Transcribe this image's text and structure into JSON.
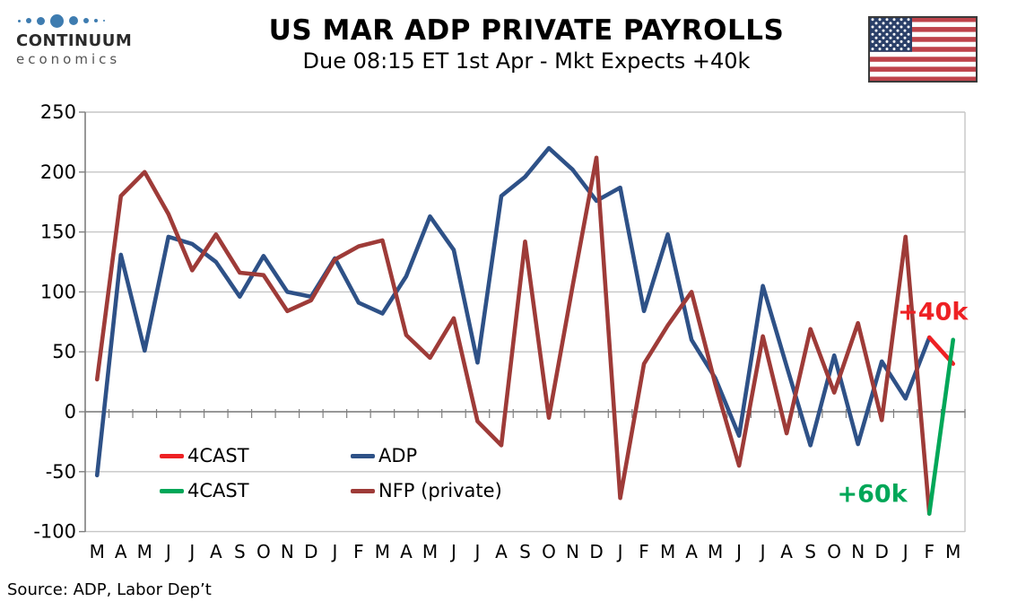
{
  "logo": {
    "name": "CONTINUUM",
    "tagline": "economics",
    "dot_color": "#3e7cb0",
    "dot_sizes": [
      3,
      6,
      9,
      15,
      10,
      6,
      4,
      2
    ]
  },
  "header": {
    "title": "US MAR ADP PRIVATE PAYROLLS",
    "subtitle": "Due 08:15 ET 1st Apr - Mkt Expects +40k"
  },
  "flag": {
    "red": "#be434b",
    "white": "#ffffff",
    "blue": "#2a3f68",
    "border": "#3a3a3a"
  },
  "source": {
    "text": "Source: ADP, Labor Dep’t"
  },
  "chart_data": {
    "type": "line",
    "title": "US MAR ADP PRIVATE PAYROLLS",
    "xlabel": "",
    "ylabel": "",
    "ylim": [
      -100,
      250
    ],
    "ytick_step": 50,
    "yticks": [
      250,
      200,
      150,
      100,
      50,
      0,
      -50,
      -100
    ],
    "grid": "horizontal",
    "legend_position": "inside-lower-left",
    "x_labels": [
      "M",
      "A",
      "M",
      "J",
      "J",
      "A",
      "S",
      "O",
      "N",
      "D",
      "J",
      "F",
      "M",
      "A",
      "M",
      "J",
      "J",
      "A",
      "S",
      "O",
      "N",
      "D",
      "J",
      "F",
      "M",
      "A",
      "M",
      "J",
      "J",
      "A",
      "S",
      "O",
      "N",
      "D",
      "J",
      "F",
      "M"
    ],
    "series": [
      {
        "name": "ADP",
        "color": "#2e5187",
        "values": [
          -53,
          131,
          51,
          146,
          140,
          125,
          96,
          130,
          100,
          96,
          128,
          91,
          82,
          113,
          163,
          135,
          41,
          180,
          196,
          220,
          202,
          176,
          187,
          84,
          148,
          60,
          28,
          -20,
          105,
          38,
          -28,
          47,
          -27,
          42,
          11,
          62,
          null
        ]
      },
      {
        "name": "NFP (private)",
        "color": "#9e3b38",
        "values": [
          27,
          180,
          200,
          165,
          118,
          148,
          116,
          114,
          84,
          93,
          127,
          138,
          143,
          64,
          45,
          78,
          -8,
          -28,
          142,
          -5,
          105,
          212,
          -72,
          40,
          72,
          100,
          23,
          -45,
          63,
          -18,
          69,
          16,
          74,
          -7,
          146,
          -85,
          null
        ]
      },
      {
        "name": "4CAST",
        "color": "#ee2124",
        "values": [
          null,
          null,
          null,
          null,
          null,
          null,
          null,
          null,
          null,
          null,
          null,
          null,
          null,
          null,
          null,
          null,
          null,
          null,
          null,
          null,
          null,
          null,
          null,
          null,
          null,
          null,
          null,
          null,
          null,
          null,
          null,
          null,
          null,
          null,
          null,
          62,
          40
        ]
      },
      {
        "name": "4CAST",
        "color": "#00a758",
        "values": [
          null,
          null,
          null,
          null,
          null,
          null,
          null,
          null,
          null,
          null,
          null,
          null,
          null,
          null,
          null,
          null,
          null,
          null,
          null,
          null,
          null,
          null,
          null,
          null,
          null,
          null,
          null,
          null,
          null,
          null,
          null,
          null,
          null,
          null,
          null,
          -85,
          60
        ]
      }
    ],
    "annotations": [
      {
        "text": "+40k",
        "color": "#ee2124",
        "xi": 35.15,
        "y": 83
      },
      {
        "text": "+60k",
        "color": "#00a758",
        "xi": 32.6,
        "y": -69
      }
    ]
  }
}
